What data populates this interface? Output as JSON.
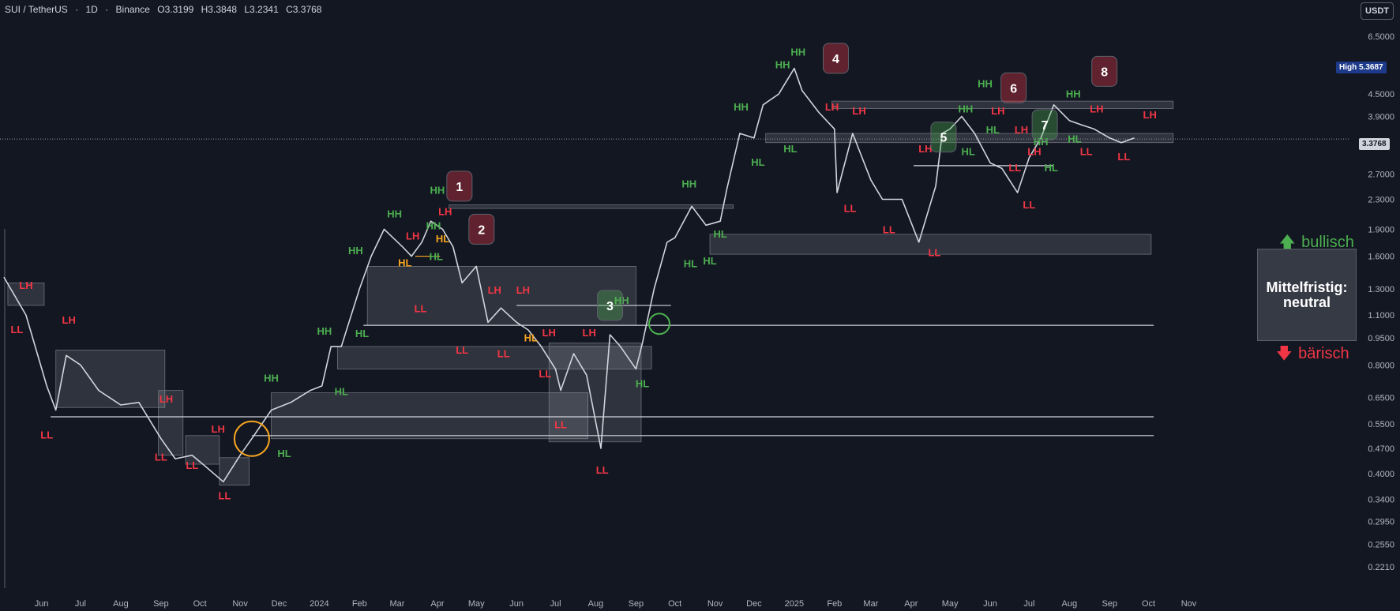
{
  "header": {
    "symbol": "SUI / TetherUS",
    "interval": "1D",
    "exchange": "Binance",
    "open": "O3.3199",
    "high": "H3.3848",
    "low": "L3.2341",
    "close": "C3.3768",
    "sep1": "·",
    "sep2": "·"
  },
  "currency_button": "USDT",
  "price_tags": {
    "high_label": "High",
    "high_value": "5.3687",
    "last_value": "3.3768"
  },
  "bias": {
    "title": "Mittelfristig:",
    "value": "neutral",
    "bull": "bullisch",
    "bear": "bärisch"
  },
  "colors": {
    "background": "#131722",
    "candle": "#d1d4dc",
    "bull": "#4caf50",
    "bear": "#f23645",
    "hl_orange": "#f7a521"
  },
  "chart_data": {
    "type": "line",
    "scale": "log",
    "y_ticks": [
      "6.5000",
      "5.3687",
      "4.5000",
      "3.9000",
      "3.3768",
      "2.7000",
      "2.3000",
      "1.9000",
      "1.6000",
      "1.3000",
      "1.1000",
      "0.9500",
      "0.8000",
      "0.6500",
      "0.5500",
      "0.4700",
      "0.4000",
      "0.3400",
      "0.2950",
      "0.2550",
      "0.2210"
    ],
    "x_ticks": [
      "Jun",
      "Jul",
      "Aug",
      "Sep",
      "Oct",
      "Nov",
      "Dec",
      "2024",
      "Feb",
      "Mar",
      "Apr",
      "May",
      "Jun",
      "Jul",
      "Aug",
      "Sep",
      "Oct",
      "Nov",
      "Dec",
      "2025",
      "Feb",
      "Mar",
      "Apr",
      "May",
      "Jun",
      "Jul",
      "Aug",
      "Sep",
      "Oct",
      "Nov"
    ],
    "series": [
      {
        "x": [
          "2023-05-03",
          "2023-05-20",
          "2023-06-05",
          "2023-06-12",
          "2023-06-20",
          "2023-07-01",
          "2023-07-15",
          "2023-08-01",
          "2023-08-15",
          "2023-09-01",
          "2023-09-12",
          "2023-09-25",
          "2023-10-05",
          "2023-10-19",
          "2023-11-01",
          "2023-11-10",
          "2023-11-25",
          "2023-12-10",
          "2023-12-25",
          "2024-01-03",
          "2024-01-10",
          "2024-01-18",
          "2024-02-01",
          "2024-02-10",
          "2024-02-20",
          "2024-03-05",
          "2024-03-12",
          "2024-03-20",
          "2024-03-27",
          "2024-04-05",
          "2024-04-13",
          "2024-04-20",
          "2024-05-01",
          "2024-05-10",
          "2024-05-20",
          "2024-06-01",
          "2024-06-10",
          "2024-06-20",
          "2024-07-01",
          "2024-07-05",
          "2024-07-15",
          "2024-07-25",
          "2024-08-05",
          "2024-08-12",
          "2024-08-20",
          "2024-09-01",
          "2024-09-06",
          "2024-09-15",
          "2024-09-25",
          "2024-10-01",
          "2024-10-14",
          "2024-10-25",
          "2024-11-05",
          "2024-11-10",
          "2024-11-20",
          "2024-12-01",
          "2024-12-08",
          "2024-12-20",
          "2025-01-01",
          "2025-01-07",
          "2025-01-20",
          "2025-02-01",
          "2025-02-03",
          "2025-02-15",
          "2025-03-01",
          "2025-03-10",
          "2025-03-25",
          "2025-04-07",
          "2025-04-20",
          "2025-04-25",
          "2025-05-01",
          "2025-05-10",
          "2025-05-20",
          "2025-06-01",
          "2025-06-10",
          "2025-06-22",
          "2025-07-01",
          "2025-07-10",
          "2025-07-20",
          "2025-08-01",
          "2025-08-10",
          "2025-08-20",
          "2025-09-01",
          "2025-09-10",
          "2025-09-20"
        ],
        "y": [
          1.4,
          1.1,
          0.7,
          0.6,
          0.85,
          0.8,
          0.68,
          0.62,
          0.63,
          0.5,
          0.44,
          0.45,
          0.42,
          0.38,
          0.45,
          0.5,
          0.6,
          0.63,
          0.68,
          0.7,
          0.9,
          0.9,
          1.3,
          1.6,
          1.9,
          1.7,
          1.6,
          1.75,
          2.0,
          1.9,
          1.7,
          1.35,
          1.5,
          1.05,
          1.15,
          1.05,
          1.0,
          0.9,
          0.78,
          0.68,
          0.86,
          0.75,
          0.47,
          0.97,
          0.9,
          0.78,
          0.92,
          1.3,
          1.75,
          1.8,
          2.2,
          1.95,
          2.0,
          2.45,
          3.5,
          3.4,
          4.2,
          4.5,
          5.3,
          4.6,
          4.0,
          3.6,
          2.4,
          3.5,
          2.6,
          2.3,
          2.3,
          1.75,
          2.5,
          3.5,
          3.6,
          3.9,
          3.5,
          2.9,
          2.8,
          2.4,
          3.0,
          3.4,
          4.2,
          3.8,
          3.7,
          3.6,
          3.4,
          3.3,
          3.4
        ]
      }
    ],
    "swing_labels": [
      {
        "text": "LH",
        "date": "2023-05-20",
        "price": 1.3,
        "type": "bear"
      },
      {
        "text": "LL",
        "date": "2023-05-13",
        "price": 0.98,
        "type": "bear"
      },
      {
        "text": "LH",
        "date": "2023-06-22",
        "price": 1.04,
        "type": "bear"
      },
      {
        "text": "LL",
        "date": "2023-06-05",
        "price": 0.5,
        "type": "bear"
      },
      {
        "text": "LH",
        "date": "2023-09-05",
        "price": 0.63,
        "type": "bear"
      },
      {
        "text": "LL",
        "date": "2023-09-01",
        "price": 0.435,
        "type": "bear"
      },
      {
        "text": "LL",
        "date": "2023-09-25",
        "price": 0.412,
        "type": "bear"
      },
      {
        "text": "LH",
        "date": "2023-10-15",
        "price": 0.52,
        "type": "bear"
      },
      {
        "text": "LL",
        "date": "2023-10-20",
        "price": 0.34,
        "type": "bear"
      },
      {
        "text": "HH",
        "date": "2023-11-25",
        "price": 0.72,
        "type": "bull"
      },
      {
        "text": "HL",
        "date": "2023-12-05",
        "price": 0.445,
        "type": "bull"
      },
      {
        "text": "HL",
        "date": "2024-01-18",
        "price": 0.66,
        "type": "bull"
      },
      {
        "text": "HH",
        "date": "2024-01-05",
        "price": 0.97,
        "type": "bull"
      },
      {
        "text": "HL",
        "date": "2024-02-03",
        "price": 0.955,
        "type": "bull"
      },
      {
        "text": "HH",
        "date": "2024-01-29",
        "price": 1.62,
        "type": "bull"
      },
      {
        "text": "HH",
        "date": "2024-02-28",
        "price": 2.05,
        "type": "bull"
      },
      {
        "text": "LH",
        "date": "2024-03-13",
        "price": 1.78,
        "type": "bear"
      },
      {
        "text": "HL",
        "date": "2024-03-07",
        "price": 1.5,
        "type": "orange"
      },
      {
        "text": "LL",
        "date": "2024-03-19",
        "price": 1.12,
        "type": "bear"
      },
      {
        "text": "HH",
        "date": "2024-03-29",
        "price": 1.9,
        "type": "bull"
      },
      {
        "text": "HH",
        "date": "2024-04-01",
        "price": 2.38,
        "type": "bull"
      },
      {
        "text": "LH",
        "date": "2024-04-07",
        "price": 2.08,
        "type": "bear"
      },
      {
        "text": "HL",
        "date": "2024-04-05",
        "price": 1.75,
        "type": "orange"
      },
      {
        "text": "HL",
        "date": "2024-03-31",
        "price": 1.56,
        "type": "bull"
      },
      {
        "text": "LL",
        "date": "2024-04-20",
        "price": 0.86,
        "type": "bear"
      },
      {
        "text": "LH",
        "date": "2024-05-15",
        "price": 1.26,
        "type": "bear"
      },
      {
        "text": "LL",
        "date": "2024-05-22",
        "price": 0.84,
        "type": "bear"
      },
      {
        "text": "LH",
        "date": "2024-06-06",
        "price": 1.26,
        "type": "bear"
      },
      {
        "text": "HL",
        "date": "2024-06-12",
        "price": 0.93,
        "type": "orange"
      },
      {
        "text": "LH",
        "date": "2024-06-26",
        "price": 0.96,
        "type": "bear"
      },
      {
        "text": "LL",
        "date": "2024-06-23",
        "price": 0.74,
        "type": "bear"
      },
      {
        "text": "LL",
        "date": "2024-07-05",
        "price": 0.535,
        "type": "bear"
      },
      {
        "text": "LH",
        "date": "2024-07-27",
        "price": 0.96,
        "type": "bear"
      },
      {
        "text": "LL",
        "date": "2024-08-06",
        "price": 0.4,
        "type": "bear"
      },
      {
        "text": "HH",
        "date": "2024-08-21",
        "price": 1.18,
        "type": "bull"
      },
      {
        "text": "HL",
        "date": "2024-09-06",
        "price": 0.695,
        "type": "bull"
      },
      {
        "text": "HH",
        "date": "2024-10-12",
        "price": 2.48,
        "type": "bull"
      },
      {
        "text": "HL",
        "date": "2024-10-13",
        "price": 1.49,
        "type": "bull"
      },
      {
        "text": "HL",
        "date": "2024-10-28",
        "price": 1.52,
        "type": "bull"
      },
      {
        "text": "HL",
        "date": "2024-11-05",
        "price": 1.8,
        "type": "bull"
      },
      {
        "text": "HH",
        "date": "2024-11-21",
        "price": 4.05,
        "type": "bull"
      },
      {
        "text": "HL",
        "date": "2024-12-04",
        "price": 2.85,
        "type": "bull"
      },
      {
        "text": "HH",
        "date": "2024-12-23",
        "price": 5.3,
        "type": "bull"
      },
      {
        "text": "HH",
        "date": "2025-01-04",
        "price": 5.75,
        "type": "bull"
      },
      {
        "text": "HL",
        "date": "2024-12-29",
        "price": 3.1,
        "type": "bull"
      },
      {
        "text": "LH",
        "date": "2025-01-30",
        "price": 4.05,
        "type": "bear"
      },
      {
        "text": "LH",
        "date": "2025-02-20",
        "price": 3.95,
        "type": "bear"
      },
      {
        "text": "LL",
        "date": "2025-02-13",
        "price": 2.12,
        "type": "bear"
      },
      {
        "text": "LL",
        "date": "2025-03-15",
        "price": 1.85,
        "type": "bear"
      },
      {
        "text": "LH",
        "date": "2025-04-12",
        "price": 3.1,
        "type": "bear"
      },
      {
        "text": "LL",
        "date": "2025-04-19",
        "price": 1.6,
        "type": "bear"
      },
      {
        "text": "HL",
        "date": "2025-05-15",
        "price": 3.05,
        "type": "bull"
      },
      {
        "text": "HH",
        "date": "2025-05-13",
        "price": 4.0,
        "type": "bull"
      },
      {
        "text": "HH",
        "date": "2025-05-28",
        "price": 4.7,
        "type": "bull"
      },
      {
        "text": "LH",
        "date": "2025-06-07",
        "price": 3.95,
        "type": "bear"
      },
      {
        "text": "HL",
        "date": "2025-06-03",
        "price": 3.5,
        "type": "bull"
      },
      {
        "text": "LH",
        "date": "2025-06-25",
        "price": 3.5,
        "type": "bear"
      },
      {
        "text": "LL",
        "date": "2025-06-20",
        "price": 2.75,
        "type": "bear"
      },
      {
        "text": "LH",
        "date": "2025-07-05",
        "price": 3.05,
        "type": "bear"
      },
      {
        "text": "HH",
        "date": "2025-07-10",
        "price": 3.25,
        "type": "bull"
      },
      {
        "text": "LL",
        "date": "2025-07-01",
        "price": 2.17,
        "type": "bear"
      },
      {
        "text": "HL",
        "date": "2025-07-18",
        "price": 2.75,
        "type": "bull"
      },
      {
        "text": "HH",
        "date": "2025-08-04",
        "price": 4.4,
        "type": "bull"
      },
      {
        "text": "HL",
        "date": "2025-08-05",
        "price": 3.3,
        "type": "bull"
      },
      {
        "text": "LL",
        "date": "2025-08-14",
        "price": 3.05,
        "type": "bear"
      },
      {
        "text": "LH",
        "date": "2025-08-22",
        "price": 4.0,
        "type": "bear"
      },
      {
        "text": "LL",
        "date": "2025-09-12",
        "price": 2.95,
        "type": "bear"
      },
      {
        "text": "LH",
        "date": "2025-10-02",
        "price": 3.85,
        "type": "bear"
      }
    ],
    "markers": [
      {
        "n": "1",
        "date": "2024-04-18",
        "price": 2.5,
        "type": "bear"
      },
      {
        "n": "2",
        "date": "2024-05-05",
        "price": 1.9,
        "type": "bear"
      },
      {
        "n": "3",
        "date": "2024-08-12",
        "price": 1.17,
        "type": "bull"
      },
      {
        "n": "4",
        "date": "2025-02-02",
        "price": 5.65,
        "type": "bear"
      },
      {
        "n": "5",
        "date": "2025-04-26",
        "price": 3.42,
        "type": "bull"
      },
      {
        "n": "6",
        "date": "2025-06-19",
        "price": 4.68,
        "type": "bear"
      },
      {
        "n": "7",
        "date": "2025-07-13",
        "price": 3.7,
        "type": "bull"
      },
      {
        "n": "8",
        "date": "2025-08-28",
        "price": 5.2,
        "type": "bear"
      }
    ],
    "zones": [
      {
        "d1": "2023-05-06",
        "d2": "2023-06-03",
        "p1": 1.17,
        "p2": 1.35
      },
      {
        "d1": "2023-06-12",
        "d2": "2023-09-04",
        "p1": 0.61,
        "p2": 0.88
      },
      {
        "d1": "2023-08-30",
        "d2": "2023-09-18",
        "p1": 0.45,
        "p2": 0.68
      },
      {
        "d1": "2023-09-20",
        "d2": "2023-10-16",
        "p1": 0.425,
        "p2": 0.51
      },
      {
        "d1": "2023-10-16",
        "d2": "2023-11-08",
        "p1": 0.372,
        "p2": 0.443
      },
      {
        "d1": "2023-11-25",
        "d2": "2024-07-26",
        "p1": 0.5,
        "p2": 0.67
      },
      {
        "d1": "2024-01-15",
        "d2": "2024-09-13",
        "p1": 0.78,
        "p2": 0.9
      },
      {
        "d1": "2024-02-07",
        "d2": "2024-09-01",
        "p1": 1.03,
        "p2": 1.5
      },
      {
        "d1": "2024-06-26",
        "d2": "2024-09-05",
        "p1": 0.49,
        "p2": 0.92
      },
      {
        "d1": "2024-04-10",
        "d2": "2024-11-15",
        "p1": 2.17,
        "p2": 2.22
      },
      {
        "d1": "2024-10-28",
        "d2": "2025-10-03",
        "p1": 1.62,
        "p2": 1.84
      },
      {
        "d1": "2024-12-10",
        "d2": "2025-10-20",
        "p1": 3.3,
        "p2": 3.5
      },
      {
        "d1": "2025-01-30",
        "d2": "2025-10-20",
        "p1": 4.1,
        "p2": 4.3
      }
    ],
    "lines": [
      {
        "d1": "2023-06-08",
        "d2": "2025-10-05",
        "p": 0.575
      },
      {
        "d1": "2023-11-10",
        "d2": "2025-10-05",
        "p": 0.51
      },
      {
        "d1": "2024-02-04",
        "d2": "2025-10-05",
        "p": 1.03
      },
      {
        "d1": "2024-06-01",
        "d2": "2024-09-28",
        "p": 1.17
      },
      {
        "d1": "2025-04-03",
        "d2": "2025-07-20",
        "p": 2.85
      }
    ],
    "hl_orange": [
      {
        "d1": "2024-03-15",
        "d2": "2024-04-03",
        "p": 1.6
      }
    ]
  }
}
